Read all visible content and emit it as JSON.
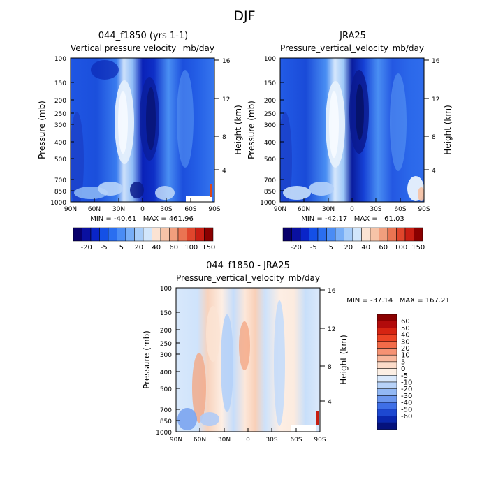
{
  "page": {
    "title": "DJF"
  },
  "colors": {
    "model_obs_scale": [
      "#08006b",
      "#0a10a0",
      "#0a25c8",
      "#1450e6",
      "#2a6ef0",
      "#4a8cf5",
      "#78aef7",
      "#a8cdf9",
      "#d2e6fb",
      "#fbe3d3",
      "#f6c3a7",
      "#f19e7d",
      "#ea7452",
      "#e0462c",
      "#c91e13",
      "#8a0000"
    ],
    "diff_scale": [
      "#8a0000",
      "#b20b0b",
      "#d62412",
      "#ec4425",
      "#f26b49",
      "#f69273",
      "#f8b79c",
      "#fbdbc9",
      "#fcefe4",
      "#d9e8fb",
      "#b7d2f8",
      "#92b8f4",
      "#6c97ee",
      "#3f6fe6",
      "#1d48d1",
      "#0a27ad",
      "#05127c"
    ]
  },
  "chart_data": [
    {
      "type": "heatmap",
      "title": "044_f1850 (yrs 1-1)",
      "subtitle": "Vertical pressure velocity",
      "units": "mb/day",
      "xlabel": "",
      "ylabel": "Pressure (mb)",
      "y2label": "Height (km)",
      "xticks": [
        "90N",
        "60N",
        "30N",
        "0",
        "30S",
        "60S",
        "90S"
      ],
      "yticks": [
        "100",
        "150",
        "200",
        "250",
        "300",
        "400",
        "500",
        "700",
        "850",
        "1000"
      ],
      "y2ticks": [
        "16",
        "12",
        "8",
        "4"
      ],
      "stats_text": "MIN = -40.61   MAX = 461.96",
      "colorbar_labels": [
        "-20",
        "-5",
        "5",
        "20",
        "40",
        "60",
        "100",
        "150"
      ]
    },
    {
      "type": "heatmap",
      "title": "JRA25",
      "subtitle": "Pressure_vertical_velocity",
      "units": "mb/day",
      "xlabel": "",
      "ylabel": "Pressure (mb)",
      "y2label": "Height (km)",
      "xticks": [
        "90N",
        "60N",
        "30N",
        "0",
        "30S",
        "60S",
        "90S"
      ],
      "yticks": [
        "100",
        "150",
        "200",
        "250",
        "300",
        "400",
        "500",
        "700",
        "850",
        "1000"
      ],
      "y2ticks": [
        "16",
        "12",
        "8",
        "4"
      ],
      "stats_text": "MIN = -42.17   MAX =   61.03",
      "colorbar_labels": [
        "-20",
        "-5",
        "5",
        "20",
        "40",
        "60",
        "100",
        "150"
      ]
    },
    {
      "type": "heatmap",
      "title": "044_f1850 - JRA25",
      "subtitle": "Pressure_vertical_velocity",
      "units": "mb/day",
      "xlabel": "",
      "ylabel": "Pressure (mb)",
      "y2label": "Height (km)",
      "xticks": [
        "90N",
        "60N",
        "30N",
        "0",
        "30S",
        "60S",
        "90S"
      ],
      "yticks": [
        "100",
        "150",
        "200",
        "250",
        "300",
        "400",
        "500",
        "700",
        "850",
        "1000"
      ],
      "y2ticks": [
        "16",
        "12",
        "8",
        "4"
      ],
      "stats_text": "MIN = -37.14   MAX = 167.21",
      "colorbar_labels": [
        "60",
        "50",
        "40",
        "30",
        "20",
        "10",
        "5",
        "0",
        "-5",
        "-10",
        "-20",
        "-30",
        "-40",
        "-50",
        "-60"
      ]
    }
  ]
}
